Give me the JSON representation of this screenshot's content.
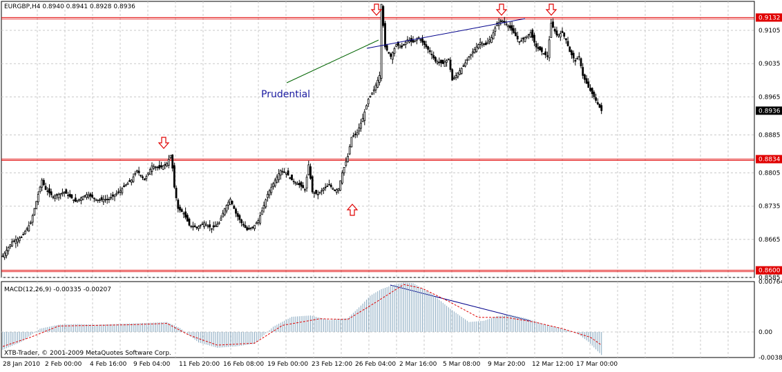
{
  "window": {
    "symbol_header": "EURGBP,H4  0.8940 0.8941 0.8928 0.8936",
    "annotation_text": "Prudential",
    "macd_header": "MACD(12,26,9) -0.00335 -0.00207",
    "copyright": "XTB-Trader, © 2001-2009 MetaQuotes Software Corp."
  },
  "colors": {
    "background": "#ffffff",
    "grid": "#c8c8c8",
    "candle": "#000000",
    "resistance_line": "#e00000",
    "arrow": "#e00000",
    "trend_blue": "#00008b",
    "trend_green": "#006400",
    "annotation": "#1a1aa0",
    "macd_histogram": "#87a8c0",
    "macd_signal": "#e00000",
    "price_label_bg": "#e00000",
    "current_label_bg": "#000000"
  },
  "chart_data": [
    {
      "type": "candlestick",
      "title": "EURGBP,H4",
      "ohlc_last": {
        "open": 0.894,
        "high": 0.8941,
        "low": 0.8928,
        "close": 0.8936
      },
      "ylim": [
        0.8585,
        0.9166
      ],
      "y_ticks": [
        "0.9105",
        "0.9035",
        "0.8965",
        "0.8885",
        "0.8805",
        "0.8735",
        "0.8665",
        "0.8585"
      ],
      "x_ticks": [
        "28 Jan 2010",
        "2 Feb 00:00",
        "4 Feb 16:00",
        "9 Feb 04:00",
        "11 Feb 20:00",
        "16 Feb 08:00",
        "19 Feb 00:00",
        "23 Feb 12:00",
        "26 Feb 04:00",
        "2 Mar 16:00",
        "5 Mar 08:00",
        "9 Mar 20:00",
        "12 Mar 12:00",
        "17 Mar 00:00"
      ],
      "horizontal_lines": [
        {
          "value": 0.9132,
          "label": "0.9132"
        },
        {
          "value": 0.8834,
          "label": "0.8834"
        },
        {
          "value": 0.86,
          "label": "0.8600"
        }
      ],
      "current_price": {
        "value": 0.8936,
        "label": "0.8936"
      },
      "close_path": [
        [
          0,
          0.863
        ],
        [
          5,
          0.866
        ],
        [
          10,
          0.867
        ],
        [
          15,
          0.87
        ],
        [
          18,
          0.8745
        ],
        [
          21,
          0.879
        ],
        [
          23,
          0.877
        ],
        [
          27,
          0.8755
        ],
        [
          33,
          0.8765
        ],
        [
          39,
          0.8745
        ],
        [
          45,
          0.876
        ],
        [
          51,
          0.8748
        ],
        [
          57,
          0.875
        ],
        [
          63,
          0.8768
        ],
        [
          66,
          0.878
        ],
        [
          69,
          0.879
        ],
        [
          72,
          0.881
        ],
        [
          76,
          0.879
        ],
        [
          80,
          0.882
        ],
        [
          84,
          0.8815
        ],
        [
          88,
          0.8825
        ],
        [
          90,
          0.8842
        ],
        [
          91,
          0.8815
        ],
        [
          92,
          0.8775
        ],
        [
          94,
          0.873
        ],
        [
          97,
          0.872
        ],
        [
          100,
          0.8695
        ],
        [
          104,
          0.869
        ],
        [
          108,
          0.87
        ],
        [
          112,
          0.8688
        ],
        [
          116,
          0.87
        ],
        [
          119,
          0.873
        ],
        [
          122,
          0.875
        ],
        [
          125,
          0.872
        ],
        [
          128,
          0.87
        ],
        [
          131,
          0.8685
        ],
        [
          134,
          0.869
        ],
        [
          137,
          0.8705
        ],
        [
          139,
          0.8725
        ],
        [
          142,
          0.876
        ],
        [
          146,
          0.879
        ],
        [
          149,
          0.881
        ],
        [
          152,
          0.8805
        ],
        [
          155,
          0.879
        ],
        [
          159,
          0.878
        ],
        [
          162,
          0.877
        ],
        [
          164,
          0.8822
        ],
        [
          166,
          0.8765
        ],
        [
          169,
          0.876
        ],
        [
          172,
          0.8772
        ],
        [
          175,
          0.878
        ],
        [
          178,
          0.8768
        ],
        [
          180,
          0.8772
        ],
        [
          182,
          0.8805
        ],
        [
          185,
          0.884
        ],
        [
          187,
          0.888
        ],
        [
          190,
          0.889
        ],
        [
          193,
          0.892
        ],
        [
          196,
          0.896
        ],
        [
          199,
          0.898
        ],
        [
          202,
          0.901
        ],
        [
          203,
          0.916
        ],
        [
          205,
          0.907
        ],
        [
          208,
          0.905
        ],
        [
          211,
          0.9075
        ],
        [
          214,
          0.907
        ],
        [
          217,
          0.9085
        ],
        [
          220,
          0.908
        ],
        [
          223,
          0.909
        ],
        [
          226,
          0.9075
        ],
        [
          229,
          0.906
        ],
        [
          232,
          0.904
        ],
        [
          236,
          0.9035
        ],
        [
          239,
          0.9045
        ],
        [
          241,
          0.9
        ],
        [
          244,
          0.9015
        ],
        [
          247,
          0.903
        ],
        [
          250,
          0.905
        ],
        [
          253,
          0.9065
        ],
        [
          256,
          0.908
        ],
        [
          259,
          0.9075
        ],
        [
          262,
          0.909
        ],
        [
          265,
          0.912
        ],
        [
          268,
          0.9125
        ],
        [
          271,
          0.9115
        ],
        [
          274,
          0.91
        ],
        [
          277,
          0.908
        ],
        [
          280,
          0.909
        ],
        [
          283,
          0.91
        ],
        [
          286,
          0.907
        ],
        [
          289,
          0.906
        ],
        [
          292,
          0.905
        ],
        [
          294,
          0.912
        ],
        [
          297,
          0.9095
        ],
        [
          300,
          0.91
        ],
        [
          302,
          0.9085
        ],
        [
          304,
          0.906
        ],
        [
          307,
          0.904
        ],
        [
          309,
          0.905
        ],
        [
          311,
          0.901
        ],
        [
          314,
          0.8985
        ],
        [
          317,
          0.8965
        ],
        [
          319,
          0.895
        ],
        [
          321,
          0.8936
        ]
      ]
    },
    {
      "type": "bar",
      "title": "MACD(12,26,9)",
      "main_value": -0.00335,
      "signal_value": -0.00207,
      "ylim": [
        -0.00388,
        0.00764
      ],
      "y_ticks": [
        "0.00764",
        "0.00",
        "-0.00388"
      ],
      "macd_path": [
        [
          0,
          -0.0027
        ],
        [
          10,
          -0.0015
        ],
        [
          20,
          0.0005
        ],
        [
          30,
          0.0011
        ],
        [
          40,
          0.0012
        ],
        [
          50,
          0.0011
        ],
        [
          60,
          0.0012
        ],
        [
          70,
          0.0013
        ],
        [
          80,
          0.0014
        ],
        [
          88,
          0.0015
        ],
        [
          95,
          0.0006
        ],
        [
          105,
          -0.0016
        ],
        [
          115,
          -0.0024
        ],
        [
          125,
          -0.0022
        ],
        [
          135,
          -0.0018
        ],
        [
          145,
          0.0008
        ],
        [
          155,
          0.0023
        ],
        [
          165,
          0.0025
        ],
        [
          175,
          0.0018
        ],
        [
          185,
          0.0021
        ],
        [
          192,
          0.004
        ],
        [
          197,
          0.0055
        ],
        [
          203,
          0.0065
        ],
        [
          210,
          0.0072
        ],
        [
          215,
          0.0075
        ],
        [
          220,
          0.0074
        ],
        [
          230,
          0.0058
        ],
        [
          240,
          0.0035
        ],
        [
          250,
          0.0015
        ],
        [
          258,
          0.0017
        ],
        [
          265,
          0.0024
        ],
        [
          272,
          0.0026
        ],
        [
          280,
          0.0021
        ],
        [
          290,
          0.0012
        ],
        [
          300,
          0.0005
        ],
        [
          308,
          -0.0002
        ],
        [
          314,
          -0.0015
        ],
        [
          321,
          -0.0035
        ]
      ],
      "signal_path": [
        [
          0,
          -0.0022
        ],
        [
          15,
          -0.0008
        ],
        [
          30,
          0.0009
        ],
        [
          50,
          0.001
        ],
        [
          70,
          0.0011
        ],
        [
          88,
          0.0013
        ],
        [
          100,
          -0.0005
        ],
        [
          115,
          -0.002
        ],
        [
          135,
          -0.0017
        ],
        [
          150,
          0.001
        ],
        [
          170,
          0.002
        ],
        [
          185,
          0.0019
        ],
        [
          200,
          0.0045
        ],
        [
          215,
          0.0072
        ],
        [
          225,
          0.0066
        ],
        [
          240,
          0.0045
        ],
        [
          255,
          0.0022
        ],
        [
          270,
          0.0022
        ],
        [
          285,
          0.0015
        ],
        [
          300,
          0.0005
        ],
        [
          315,
          -0.0008
        ],
        [
          321,
          -0.002
        ]
      ]
    }
  ]
}
